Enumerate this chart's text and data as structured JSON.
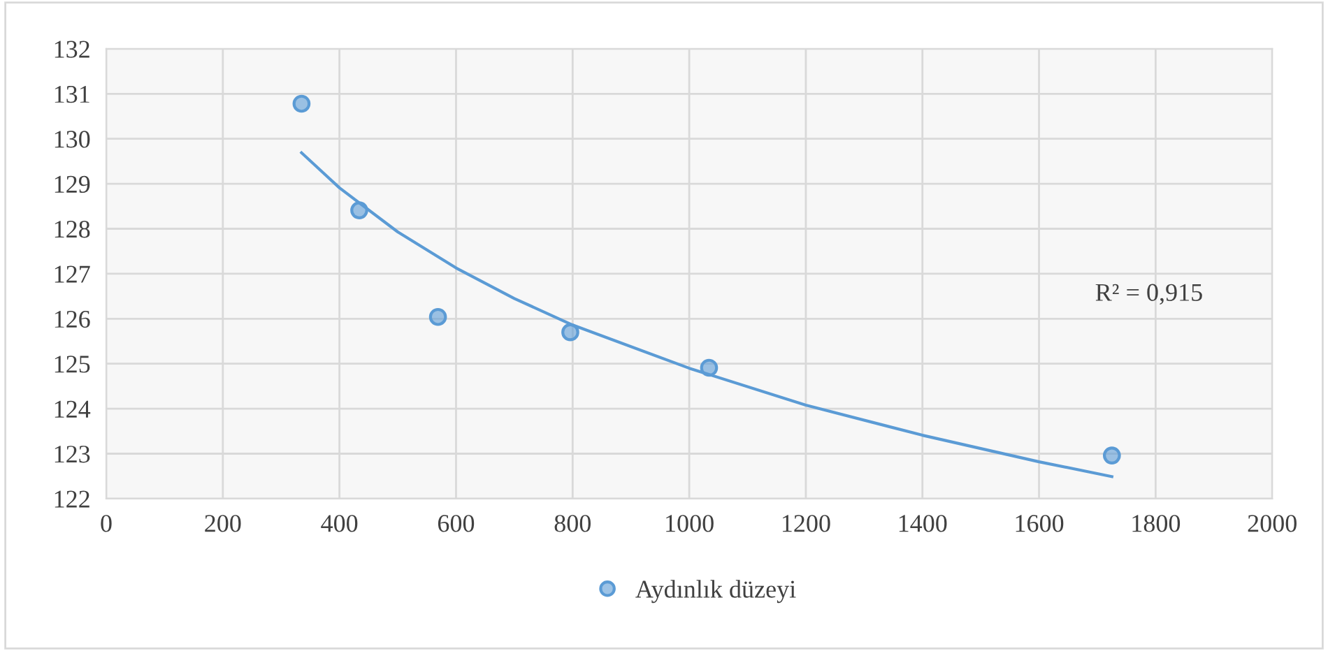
{
  "chart_data": {
    "type": "scatter",
    "xlim": [
      0,
      2000
    ],
    "xticks": [
      0,
      200,
      400,
      600,
      800,
      1000,
      1200,
      1400,
      1600,
      1800,
      2000
    ],
    "ylim": [
      122,
      132
    ],
    "yticks": [
      122,
      123,
      124,
      125,
      126,
      127,
      128,
      129,
      130,
      131,
      132
    ],
    "grid": true,
    "legend": "bottom",
    "annotations": [
      "R² = 0,915"
    ],
    "series": [
      {
        "name": "Aydınlık düzeyi",
        "marker": "circle",
        "color": "#5b9bd5",
        "x": [
          335,
          434,
          569,
          796,
          1034,
          1725
        ],
        "values": [
          130.78,
          128.41,
          126.04,
          125.7,
          124.91,
          122.96
        ]
      },
      {
        "type": "line",
        "color": "#5b9bd5",
        "line_style": "solid",
        "x": [
          335,
          400,
          500,
          600,
          700,
          800,
          1000,
          1200,
          1400,
          1600,
          1725
        ],
        "values": [
          129.69,
          128.91,
          127.93,
          127.13,
          126.45,
          125.86,
          124.9,
          124.08,
          123.41,
          122.82,
          122.49
        ]
      }
    ]
  }
}
